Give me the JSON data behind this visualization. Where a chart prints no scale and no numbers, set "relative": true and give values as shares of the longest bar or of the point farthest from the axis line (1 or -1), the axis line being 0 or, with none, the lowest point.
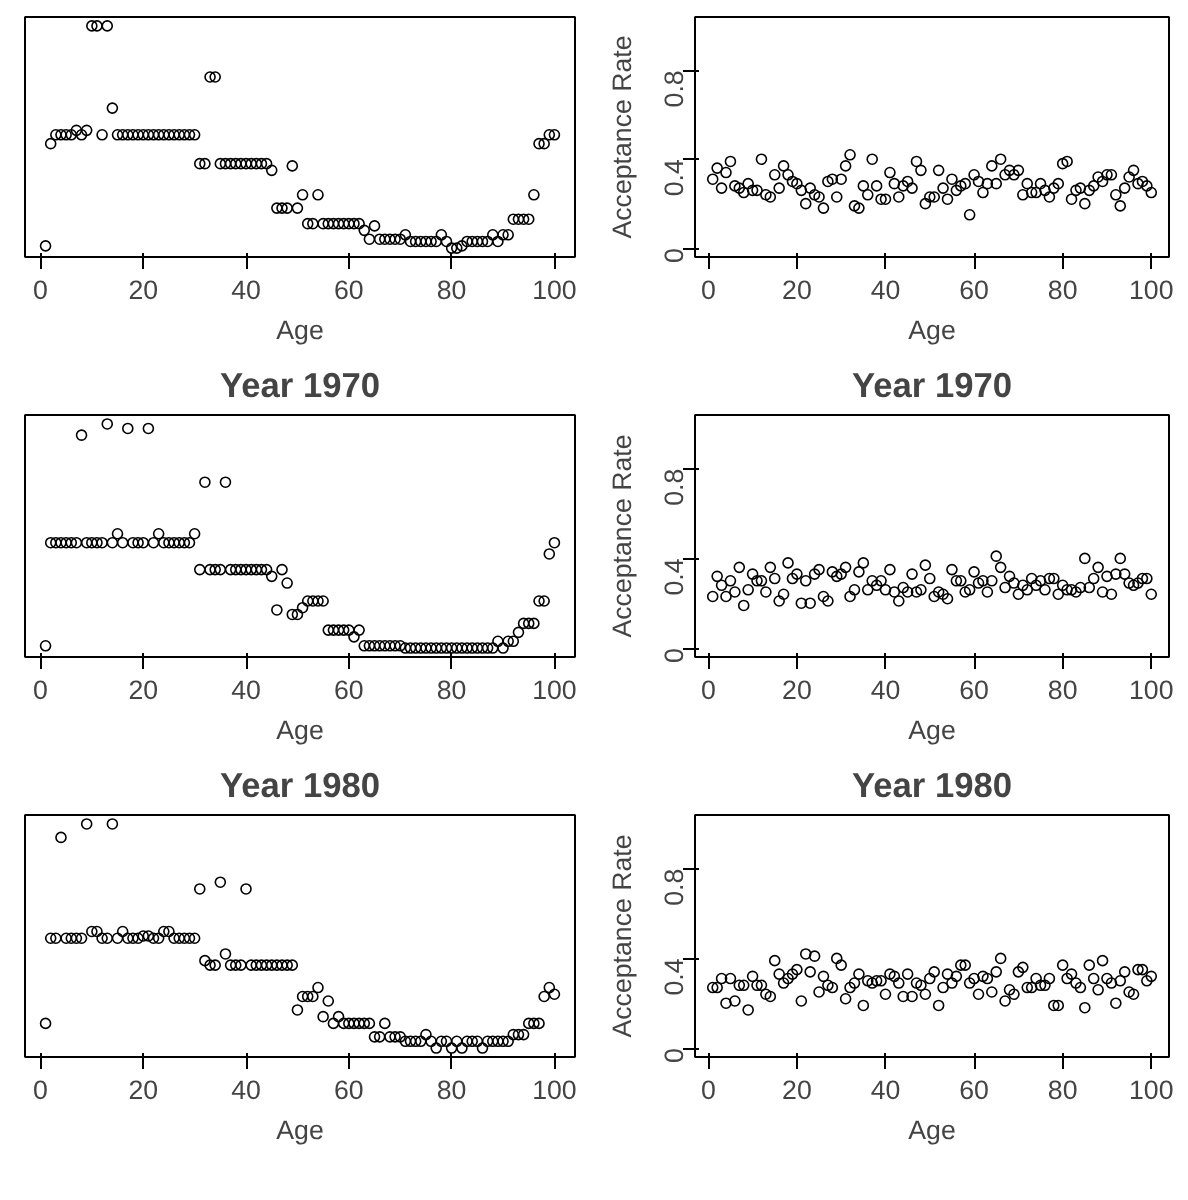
{
  "chart_data": [
    {
      "type": "scatter",
      "xlabel": "Age",
      "relative": true,
      "marker": "circle",
      "grid": false,
      "xlim": [
        -3,
        104
      ],
      "xticks": [
        0,
        20,
        40,
        60,
        80,
        100
      ],
      "series": [
        {
          "color": "#000000",
          "x": [
            1,
            2,
            3,
            4,
            5,
            6,
            7,
            8,
            9,
            10,
            11,
            12,
            13,
            14,
            15,
            16,
            17,
            18,
            19,
            20,
            21,
            22,
            23,
            24,
            25,
            26,
            27,
            28,
            29,
            30,
            31,
            32,
            33,
            34,
            35,
            36,
            37,
            38,
            39,
            40,
            41,
            42,
            43,
            44,
            45,
            46,
            47,
            48,
            49,
            50,
            51,
            52,
            53,
            54,
            55,
            56,
            57,
            58,
            59,
            60,
            61,
            62,
            63,
            64,
            65,
            66,
            67,
            68,
            69,
            70,
            71,
            72,
            73,
            74,
            75,
            76,
            77,
            78,
            79,
            80,
            81,
            82,
            83,
            84,
            85,
            86,
            87,
            88,
            89,
            90,
            91,
            92,
            93,
            94,
            95,
            96,
            97,
            98,
            99,
            100
          ],
          "values": [
            0.01,
            0.47,
            0.51,
            0.51,
            0.51,
            0.51,
            0.53,
            0.51,
            0.53,
            1,
            1,
            0.51,
            1,
            0.63,
            0.51,
            0.51,
            0.51,
            0.51,
            0.51,
            0.51,
            0.51,
            0.51,
            0.51,
            0.51,
            0.51,
            0.51,
            0.51,
            0.51,
            0.51,
            0.51,
            0.38,
            0.38,
            0.77,
            0.77,
            0.38,
            0.38,
            0.38,
            0.38,
            0.38,
            0.38,
            0.38,
            0.38,
            0.38,
            0.38,
            0.35,
            0.18,
            0.18,
            0.18,
            0.37,
            0.18,
            0.24,
            0.11,
            0.11,
            0.24,
            0.11,
            0.11,
            0.11,
            0.11,
            0.11,
            0.11,
            0.11,
            0.11,
            0.08,
            0.04,
            0.1,
            0.04,
            0.04,
            0.04,
            0.04,
            0.04,
            0.06,
            0.03,
            0.03,
            0.03,
            0.03,
            0.03,
            0.03,
            0.06,
            0.03,
            0,
            0,
            0.01,
            0.03,
            0.03,
            0.03,
            0.03,
            0.03,
            0.06,
            0.03,
            0.06,
            0.06,
            0.13,
            0.13,
            0.13,
            0.13,
            0.24,
            0.47,
            0.47,
            0.51,
            0.51
          ]
        }
      ]
    },
    {
      "type": "scatter",
      "xlabel": "Age",
      "ylabel": "Acceptance Rate",
      "marker": "circle",
      "grid": false,
      "xlim": [
        -3,
        104
      ],
      "xticks": [
        0,
        20,
        40,
        60,
        80,
        100
      ],
      "ylim": [
        -0.04,
        1.04
      ],
      "yticks": [
        0,
        0.4,
        0.8
      ],
      "series": [
        {
          "color": "#000000",
          "x": [
            1,
            2,
            3,
            4,
            5,
            6,
            7,
            8,
            9,
            10,
            11,
            12,
            13,
            14,
            15,
            16,
            17,
            18,
            19,
            20,
            21,
            22,
            23,
            24,
            25,
            26,
            27,
            28,
            29,
            30,
            31,
            32,
            33,
            34,
            35,
            36,
            37,
            38,
            39,
            40,
            41,
            42,
            43,
            44,
            45,
            46,
            47,
            48,
            49,
            50,
            51,
            52,
            53,
            54,
            55,
            56,
            57,
            58,
            59,
            60,
            61,
            62,
            63,
            64,
            65,
            66,
            67,
            68,
            69,
            70,
            71,
            72,
            73,
            74,
            75,
            76,
            77,
            78,
            79,
            80,
            81,
            82,
            83,
            84,
            85,
            86,
            87,
            88,
            89,
            90,
            91,
            92,
            93,
            94,
            95,
            96,
            97,
            98,
            99,
            100
          ],
          "values": [
            0.31,
            0.36,
            0.27,
            0.34,
            0.39,
            0.28,
            0.27,
            0.25,
            0.29,
            0.26,
            0.26,
            0.4,
            0.24,
            0.23,
            0.33,
            0.27,
            0.37,
            0.33,
            0.3,
            0.29,
            0.26,
            0.2,
            0.27,
            0.24,
            0.23,
            0.18,
            0.3,
            0.31,
            0.23,
            0.31,
            0.37,
            0.42,
            0.19,
            0.18,
            0.28,
            0.24,
            0.4,
            0.28,
            0.22,
            0.22,
            0.34,
            0.29,
            0.23,
            0.28,
            0.3,
            0.27,
            0.39,
            0.35,
            0.2,
            0.23,
            0.23,
            0.35,
            0.27,
            0.22,
            0.31,
            0.26,
            0.28,
            0.29,
            0.15,
            0.33,
            0.3,
            0.25,
            0.29,
            0.37,
            0.29,
            0.4,
            0.33,
            0.35,
            0.33,
            0.35,
            0.24,
            0.29,
            0.25,
            0.25,
            0.29,
            0.26,
            0.23,
            0.27,
            0.29,
            0.38,
            0.39,
            0.22,
            0.26,
            0.27,
            0.2,
            0.26,
            0.28,
            0.32,
            0.3,
            0.33,
            0.33,
            0.24,
            0.19,
            0.27,
            0.32,
            0.35,
            0.29,
            0.3,
            0.28,
            0.25
          ]
        }
      ]
    },
    {
      "type": "scatter",
      "title": "Year 1970",
      "xlabel": "Age",
      "relative": true,
      "marker": "circle",
      "grid": false,
      "xlim": [
        -3,
        104
      ],
      "xticks": [
        0,
        20,
        40,
        60,
        80,
        100
      ],
      "series": [
        {
          "color": "#000000",
          "x": [
            1,
            2,
            3,
            4,
            5,
            6,
            7,
            8,
            9,
            10,
            11,
            12,
            13,
            14,
            15,
            16,
            17,
            18,
            19,
            20,
            21,
            22,
            23,
            24,
            25,
            26,
            27,
            28,
            29,
            30,
            31,
            32,
            33,
            34,
            35,
            36,
            37,
            38,
            39,
            40,
            41,
            42,
            43,
            44,
            45,
            46,
            47,
            48,
            49,
            50,
            51,
            52,
            53,
            54,
            55,
            56,
            57,
            58,
            59,
            60,
            61,
            62,
            63,
            64,
            65,
            66,
            67,
            68,
            69,
            70,
            71,
            72,
            73,
            74,
            75,
            76,
            77,
            78,
            79,
            80,
            81,
            82,
            83,
            84,
            85,
            86,
            87,
            88,
            89,
            90,
            91,
            92,
            93,
            94,
            95,
            96,
            97,
            98,
            99,
            100
          ],
          "values": [
            0.01,
            0.47,
            0.47,
            0.47,
            0.47,
            0.47,
            0.47,
            0.95,
            0.47,
            0.47,
            0.47,
            0.47,
            1,
            0.47,
            0.51,
            0.47,
            0.98,
            0.47,
            0.47,
            0.47,
            0.98,
            0.47,
            0.51,
            0.47,
            0.47,
            0.47,
            0.47,
            0.47,
            0.47,
            0.51,
            0.35,
            0.74,
            0.35,
            0.35,
            0.35,
            0.74,
            0.35,
            0.35,
            0.35,
            0.35,
            0.35,
            0.35,
            0.35,
            0.35,
            0.32,
            0.17,
            0.35,
            0.29,
            0.15,
            0.15,
            0.18,
            0.21,
            0.21,
            0.21,
            0.21,
            0.08,
            0.08,
            0.08,
            0.08,
            0.08,
            0.05,
            0.08,
            0.01,
            0.01,
            0.01,
            0.01,
            0.01,
            0.01,
            0.01,
            0.01,
            0,
            0,
            0,
            0,
            0,
            0,
            0,
            0,
            0,
            0,
            0,
            0,
            0,
            0,
            0,
            0,
            0,
            0,
            0.03,
            0,
            0.03,
            0.03,
            0.07,
            0.11,
            0.11,
            0.11,
            0.21,
            0.21,
            0.42,
            0.47
          ]
        }
      ]
    },
    {
      "type": "scatter",
      "title": "Year 1970",
      "xlabel": "Age",
      "ylabel": "Acceptance Rate",
      "marker": "circle",
      "grid": false,
      "xlim": [
        -3,
        104
      ],
      "xticks": [
        0,
        20,
        40,
        60,
        80,
        100
      ],
      "ylim": [
        -0.04,
        1.04
      ],
      "yticks": [
        0,
        0.4,
        0.8
      ],
      "series": [
        {
          "color": "#000000",
          "x": [
            1,
            2,
            3,
            4,
            5,
            6,
            7,
            8,
            9,
            10,
            11,
            12,
            13,
            14,
            15,
            16,
            17,
            18,
            19,
            20,
            21,
            22,
            23,
            24,
            25,
            26,
            27,
            28,
            29,
            30,
            31,
            32,
            33,
            34,
            35,
            36,
            37,
            38,
            39,
            40,
            41,
            42,
            43,
            44,
            45,
            46,
            47,
            48,
            49,
            50,
            51,
            52,
            53,
            54,
            55,
            56,
            57,
            58,
            59,
            60,
            61,
            62,
            63,
            64,
            65,
            66,
            67,
            68,
            69,
            70,
            71,
            72,
            73,
            74,
            75,
            76,
            77,
            78,
            79,
            80,
            81,
            82,
            83,
            84,
            85,
            86,
            87,
            88,
            89,
            90,
            91,
            92,
            93,
            94,
            95,
            96,
            97,
            98,
            99,
            100
          ],
          "values": [
            0.23,
            0.32,
            0.28,
            0.23,
            0.3,
            0.25,
            0.36,
            0.19,
            0.26,
            0.33,
            0.3,
            0.3,
            0.25,
            0.36,
            0.31,
            0.21,
            0.24,
            0.38,
            0.31,
            0.33,
            0.2,
            0.3,
            0.2,
            0.33,
            0.35,
            0.23,
            0.21,
            0.34,
            0.32,
            0.33,
            0.36,
            0.23,
            0.26,
            0.34,
            0.38,
            0.26,
            0.3,
            0.28,
            0.3,
            0.26,
            0.35,
            0.25,
            0.21,
            0.27,
            0.25,
            0.33,
            0.25,
            0.26,
            0.37,
            0.31,
            0.23,
            0.25,
            0.24,
            0.22,
            0.35,
            0.3,
            0.3,
            0.25,
            0.26,
            0.34,
            0.29,
            0.3,
            0.25,
            0.3,
            0.41,
            0.36,
            0.27,
            0.32,
            0.29,
            0.24,
            0.28,
            0.26,
            0.31,
            0.28,
            0.3,
            0.26,
            0.31,
            0.31,
            0.24,
            0.28,
            0.26,
            0.26,
            0.25,
            0.27,
            0.4,
            0.27,
            0.31,
            0.36,
            0.25,
            0.32,
            0.24,
            0.33,
            0.4,
            0.33,
            0.29,
            0.28,
            0.29,
            0.31,
            0.31,
            0.24
          ]
        }
      ]
    },
    {
      "type": "scatter",
      "title": "Year 1980",
      "xlabel": "Age",
      "relative": true,
      "marker": "circle",
      "grid": false,
      "xlim": [
        -3,
        104
      ],
      "xticks": [
        0,
        20,
        40,
        60,
        80,
        100
      ],
      "series": [
        {
          "color": "#000000",
          "x": [
            1,
            2,
            3,
            4,
            5,
            6,
            7,
            8,
            9,
            10,
            11,
            12,
            13,
            14,
            15,
            16,
            17,
            18,
            19,
            20,
            21,
            22,
            23,
            24,
            25,
            26,
            27,
            28,
            29,
            30,
            31,
            32,
            33,
            34,
            35,
            36,
            37,
            38,
            39,
            40,
            41,
            42,
            43,
            44,
            45,
            46,
            47,
            48,
            49,
            50,
            51,
            52,
            53,
            54,
            55,
            56,
            57,
            58,
            59,
            60,
            61,
            62,
            63,
            64,
            65,
            66,
            67,
            68,
            69,
            70,
            71,
            72,
            73,
            74,
            75,
            76,
            77,
            78,
            79,
            80,
            81,
            82,
            83,
            84,
            85,
            86,
            87,
            88,
            89,
            90,
            91,
            92,
            93,
            94,
            95,
            96,
            97,
            98,
            99,
            100
          ],
          "values": [
            0.11,
            0.49,
            0.49,
            0.94,
            0.49,
            0.49,
            0.49,
            0.49,
            1,
            0.52,
            0.52,
            0.49,
            0.49,
            1,
            0.49,
            0.52,
            0.49,
            0.49,
            0.49,
            0.5,
            0.5,
            0.49,
            0.49,
            0.52,
            0.52,
            0.49,
            0.49,
            0.49,
            0.49,
            0.49,
            0.71,
            0.39,
            0.37,
            0.37,
            0.74,
            0.42,
            0.37,
            0.37,
            0.37,
            0.71,
            0.37,
            0.37,
            0.37,
            0.37,
            0.37,
            0.37,
            0.37,
            0.37,
            0.37,
            0.17,
            0.23,
            0.23,
            0.23,
            0.27,
            0.14,
            0.21,
            0.11,
            0.14,
            0.11,
            0.11,
            0.11,
            0.11,
            0.11,
            0.11,
            0.05,
            0.05,
            0.11,
            0.05,
            0.05,
            0.05,
            0.03,
            0.03,
            0.03,
            0.03,
            0.06,
            0.03,
            0,
            0.03,
            0.03,
            0,
            0.03,
            0,
            0.03,
            0.03,
            0.03,
            0,
            0.03,
            0.03,
            0.03,
            0.03,
            0.03,
            0.06,
            0.06,
            0.06,
            0.11,
            0.11,
            0.11,
            0.23,
            0.27,
            0.24
          ]
        }
      ]
    },
    {
      "type": "scatter",
      "title": "Year 1980",
      "xlabel": "Age",
      "ylabel": "Acceptance Rate",
      "marker": "circle",
      "grid": false,
      "xlim": [
        -3,
        104
      ],
      "xticks": [
        0,
        20,
        40,
        60,
        80,
        100
      ],
      "ylim": [
        -0.04,
        1.04
      ],
      "yticks": [
        0,
        0.4,
        0.8
      ],
      "series": [
        {
          "color": "#000000",
          "x": [
            1,
            2,
            3,
            4,
            5,
            6,
            7,
            8,
            9,
            10,
            11,
            12,
            13,
            14,
            15,
            16,
            17,
            18,
            19,
            20,
            21,
            22,
            23,
            24,
            25,
            26,
            27,
            28,
            29,
            30,
            31,
            32,
            33,
            34,
            35,
            36,
            37,
            38,
            39,
            40,
            41,
            42,
            43,
            44,
            45,
            46,
            47,
            48,
            49,
            50,
            51,
            52,
            53,
            54,
            55,
            56,
            57,
            58,
            59,
            60,
            61,
            62,
            63,
            64,
            65,
            66,
            67,
            68,
            69,
            70,
            71,
            72,
            73,
            74,
            75,
            76,
            77,
            78,
            79,
            80,
            81,
            82,
            83,
            84,
            85,
            86,
            87,
            88,
            89,
            90,
            91,
            92,
            93,
            94,
            95,
            96,
            97,
            98,
            99,
            100
          ],
          "values": [
            0.27,
            0.27,
            0.31,
            0.2,
            0.31,
            0.21,
            0.28,
            0.28,
            0.17,
            0.32,
            0.28,
            0.28,
            0.24,
            0.23,
            0.39,
            0.33,
            0.29,
            0.31,
            0.33,
            0.35,
            0.21,
            0.42,
            0.34,
            0.41,
            0.25,
            0.32,
            0.28,
            0.27,
            0.4,
            0.37,
            0.22,
            0.27,
            0.29,
            0.33,
            0.19,
            0.3,
            0.29,
            0.3,
            0.3,
            0.24,
            0.33,
            0.32,
            0.29,
            0.23,
            0.33,
            0.23,
            0.29,
            0.28,
            0.24,
            0.31,
            0.34,
            0.19,
            0.27,
            0.33,
            0.29,
            0.32,
            0.37,
            0.37,
            0.29,
            0.31,
            0.24,
            0.32,
            0.31,
            0.25,
            0.34,
            0.4,
            0.21,
            0.26,
            0.24,
            0.34,
            0.36,
            0.27,
            0.27,
            0.31,
            0.28,
            0.28,
            0.31,
            0.19,
            0.19,
            0.37,
            0.31,
            0.33,
            0.29,
            0.27,
            0.18,
            0.37,
            0.31,
            0.26,
            0.39,
            0.31,
            0.29,
            0.2,
            0.3,
            0.34,
            0.25,
            0.24,
            0.35,
            0.35,
            0.3,
            0.32
          ]
        }
      ]
    }
  ]
}
